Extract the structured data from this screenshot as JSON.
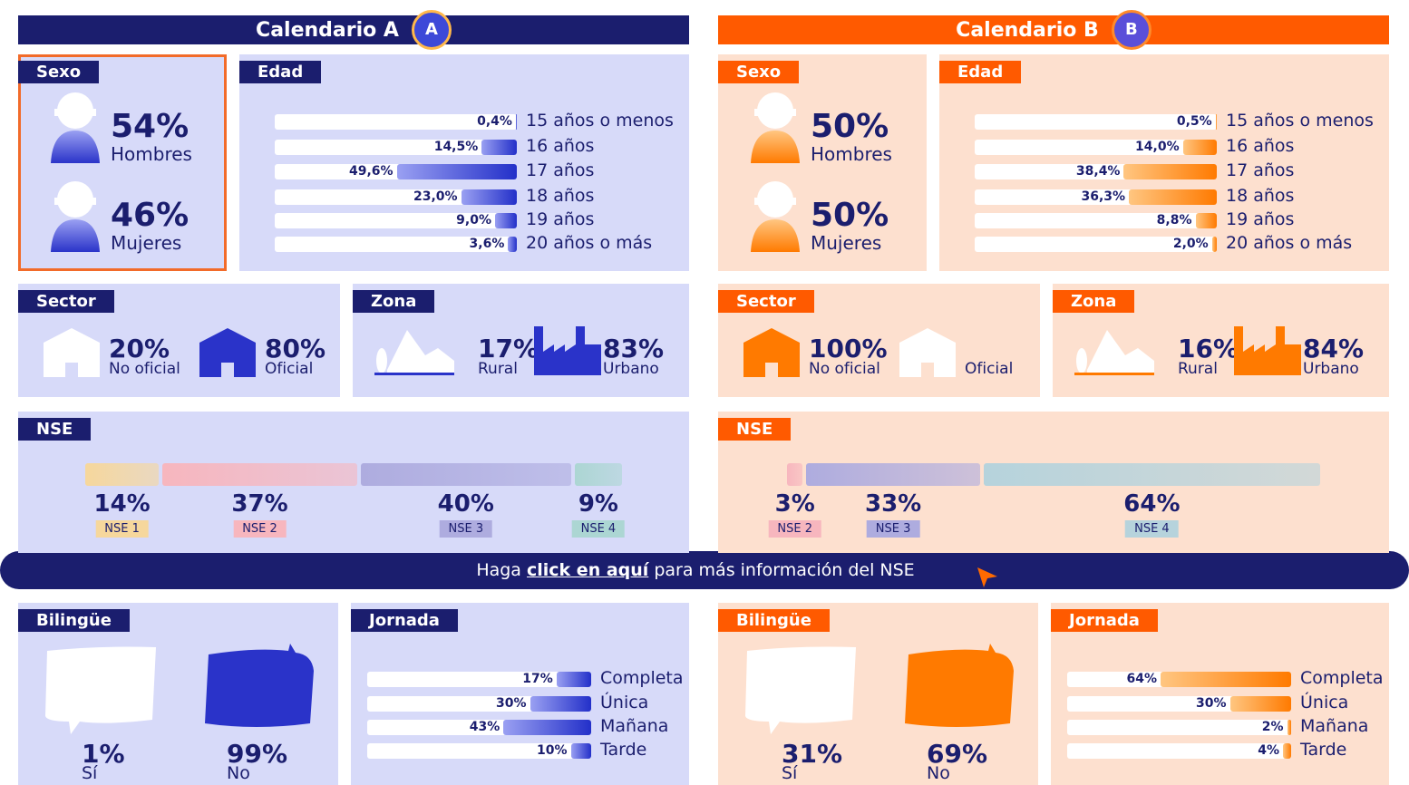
{
  "calendars": [
    {
      "title": "Calendario A",
      "badge": "A",
      "theme": {
        "header": "#1b1e6e",
        "panel": "#d7daf9",
        "tag": "#1b1e6e",
        "accent": "#2a33c9",
        "bar_from": "#9aa0f2",
        "bar_to": "#2330c9",
        "highlight": "#f26b2a"
      },
      "sexo": {
        "title": "Sexo",
        "highlighted": true,
        "items": [
          {
            "pct": "54%",
            "label": "Hombres"
          },
          {
            "pct": "46%",
            "label": "Mujeres"
          }
        ]
      },
      "edad": {
        "title": "Edad",
        "items": [
          {
            "label": "15 años o menos",
            "value": 0.4,
            "value_label": "0,4%"
          },
          {
            "label": "16 años",
            "value": 14.5,
            "value_label": "14,5%"
          },
          {
            "label": "17 años",
            "value": 49.6,
            "value_label": "49,6%"
          },
          {
            "label": "18 años",
            "value": 23.0,
            "value_label": "23,0%"
          },
          {
            "label": "19 años",
            "value": 9.0,
            "value_label": "9,0%"
          },
          {
            "label": "20 años o más",
            "value": 3.6,
            "value_label": "3,6%"
          }
        ]
      },
      "sector": {
        "title": "Sector",
        "items": [
          {
            "pct": "20%",
            "label": "No oficial",
            "color": "#ffffff"
          },
          {
            "pct": "80%",
            "label": "Oficial",
            "color": "#2a33c9"
          }
        ]
      },
      "zona": {
        "title": "Zona",
        "items": [
          {
            "pct": "17%",
            "label": "Rural"
          },
          {
            "pct": "83%",
            "label": "Urbano"
          }
        ]
      },
      "nse": {
        "title": "NSE",
        "items": [
          {
            "value": 14,
            "value_label": "14%",
            "label": "NSE 1",
            "color": "#f6d79c"
          },
          {
            "value": 37,
            "value_label": "37%",
            "label": "NSE 2",
            "color": "#f7b6be"
          },
          {
            "value": 40,
            "value_label": "40%",
            "label": "NSE 3",
            "color": "#aeacdf"
          },
          {
            "value": 9,
            "value_label": "9%",
            "label": "NSE 4",
            "color": "#acd6d3"
          }
        ]
      },
      "bilingue": {
        "title": "Bilingüe",
        "items": [
          {
            "pct": "1%",
            "label": "Sí"
          },
          {
            "pct": "99%",
            "label": "No"
          }
        ]
      },
      "jornada": {
        "title": "Jornada",
        "items": [
          {
            "label": "Completa",
            "value": 17,
            "value_label": "17%"
          },
          {
            "label": "Única",
            "value": 30,
            "value_label": "30%"
          },
          {
            "label": "Mañana",
            "value": 43,
            "value_label": "43%"
          },
          {
            "label": "Tarde",
            "value": 10,
            "value_label": "10%"
          }
        ]
      }
    },
    {
      "title": "Calendario B",
      "badge": "B",
      "theme": {
        "header": "#ff5a00",
        "panel": "#fde0cf",
        "tag": "#ff5a00",
        "accent": "#ff7a00",
        "bar_from": "#ffc681",
        "bar_to": "#ff7a00",
        "highlight": "#fde0cf"
      },
      "sexo": {
        "title": "Sexo",
        "highlighted": false,
        "items": [
          {
            "pct": "50%",
            "label": "Hombres"
          },
          {
            "pct": "50%",
            "label": "Mujeres"
          }
        ]
      },
      "edad": {
        "title": "Edad",
        "items": [
          {
            "label": "15 años o menos",
            "value": 0.5,
            "value_label": "0,5%"
          },
          {
            "label": "16 años",
            "value": 14.0,
            "value_label": "14,0%"
          },
          {
            "label": "17 años",
            "value": 38.4,
            "value_label": "38,4%"
          },
          {
            "label": "18 años",
            "value": 36.3,
            "value_label": "36,3%"
          },
          {
            "label": "19 años",
            "value": 8.8,
            "value_label": "8,8%"
          },
          {
            "label": "20 años o más",
            "value": 2.0,
            "value_label": "2,0%"
          }
        ]
      },
      "sector": {
        "title": "Sector",
        "items": [
          {
            "pct": "100%",
            "label": "No oficial",
            "color": "#ff7a00"
          },
          {
            "label": "Oficial",
            "color": "#ffffff"
          }
        ]
      },
      "zona": {
        "title": "Zona",
        "items": [
          {
            "pct": "16%",
            "label": "Rural"
          },
          {
            "pct": "84%",
            "label": "Urbano"
          }
        ]
      },
      "nse": {
        "title": "NSE",
        "items": [
          {
            "value": 3,
            "value_label": "3%",
            "label": "NSE 2",
            "color": "#f7b6be"
          },
          {
            "value": 33,
            "value_label": "33%",
            "label": "NSE 3",
            "color": "#aeacdf"
          },
          {
            "value": 64,
            "value_label": "64%",
            "label": "NSE 4",
            "color": "#b6d3dc"
          }
        ]
      },
      "bilingue": {
        "title": "Bilingüe",
        "items": [
          {
            "pct": "31%",
            "label": "Sí"
          },
          {
            "pct": "69%",
            "label": "No"
          }
        ]
      },
      "jornada": {
        "title": "Jornada",
        "items": [
          {
            "label": "Completa",
            "value": 64,
            "value_label": "64%"
          },
          {
            "label": "Única",
            "value": 30,
            "value_label": "30%"
          },
          {
            "label": "Mañana",
            "value": 2,
            "value_label": "2%"
          },
          {
            "label": "Tarde",
            "value": 4,
            "value_label": "4%"
          }
        ]
      }
    }
  ],
  "banner": {
    "before": "Haga",
    "link": "click en aquí",
    "after": "para más información del NSE"
  }
}
